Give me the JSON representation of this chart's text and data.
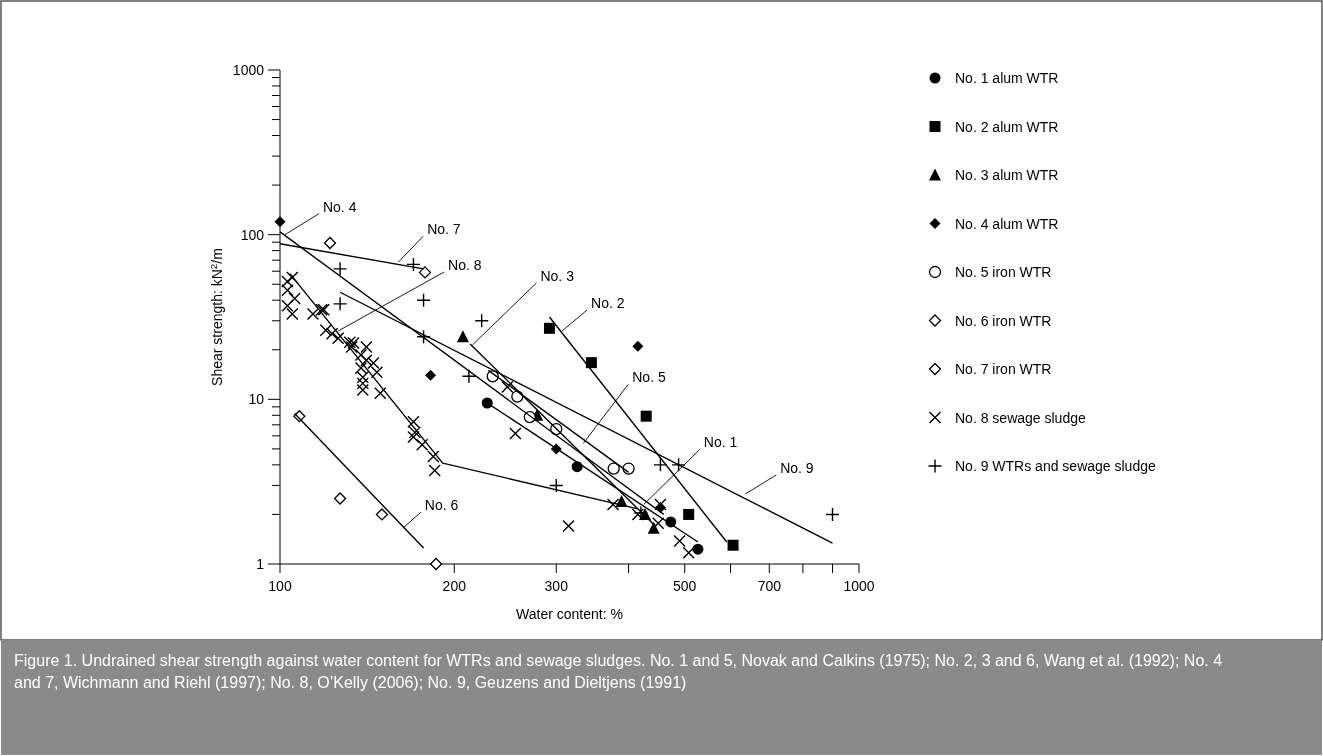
{
  "chart_data": {
    "type": "scatter",
    "xlabel": "Water content: %",
    "ylabel": "Shear strength: kN$^{2}$/m",
    "log": "xy",
    "legend": "right",
    "xlim": [
      100,
      1000
    ],
    "ylim": [
      1,
      1000
    ],
    "xticks": [
      100,
      200,
      300,
      {
        "value": 400,
        "label": null
      },
      500,
      {
        "value": 600,
        "label": null
      },
      700,
      {
        "value": 800,
        "label": null
      },
      {
        "value": 900,
        "label": null
      },
      1000
    ],
    "yticks": [
      1,
      {
        "value": 2,
        "label": null
      },
      {
        "value": 3,
        "label": null
      },
      {
        "value": 4,
        "label": null
      },
      {
        "value": 5,
        "label": null
      },
      {
        "value": 6,
        "label": null
      },
      {
        "value": 7,
        "label": null
      },
      {
        "value": 8,
        "label": null
      },
      {
        "value": 9,
        "label": null
      },
      10,
      {
        "value": 20,
        "label": null
      },
      {
        "value": 30,
        "label": null
      },
      {
        "value": 40,
        "label": null
      },
      {
        "value": 50,
        "label": null
      },
      {
        "value": 60,
        "label": null
      },
      {
        "value": 70,
        "label": null
      },
      {
        "value": 80,
        "label": null
      },
      {
        "value": 90,
        "label": null
      },
      100,
      {
        "value": 200,
        "label": null
      },
      {
        "value": 300,
        "label": null
      },
      {
        "value": 400,
        "label": null
      },
      {
        "value": 500,
        "label": null
      },
      {
        "value": 600,
        "label": null
      },
      {
        "value": 700,
        "label": null
      },
      {
        "value": 800,
        "label": null
      },
      {
        "value": 900,
        "label": null
      },
      1000
    ],
    "series": [
      {
        "name": "No. 1 alum WTR",
        "marker": "circle",
        "color": "#000000",
        "x": [
          228,
          326,
          473,
          527
        ],
        "values": [
          9.5,
          3.9,
          1.8,
          1.23
        ]
      },
      {
        "name": "No. 2 alum WTR",
        "marker": "square",
        "color": "#000000",
        "x": [
          292,
          345,
          429,
          508,
          606
        ],
        "values": [
          27,
          16.7,
          7.9,
          2.0,
          1.3
        ]
      },
      {
        "name": "No. 3 alum WTR",
        "marker": "triangle",
        "color": "#000000",
        "x": [
          207,
          278,
          389,
          427,
          442
        ],
        "values": [
          24,
          8.0,
          2.4,
          2.0,
          1.65
        ]
      },
      {
        "name": "No. 4 alum WTR",
        "marker": "diamond",
        "color": "#000000",
        "x": [
          100,
          182,
          300,
          415,
          454
        ],
        "values": [
          120,
          14,
          5.0,
          21,
          2.2
        ]
      },
      {
        "name": "No. 5 iron WTR",
        "marker": "circle-open",
        "color": "#000000",
        "x": [
          233,
          257,
          270,
          300,
          377,
          400
        ],
        "values": [
          13.8,
          10.4,
          7.8,
          6.6,
          3.8,
          3.8
        ]
      },
      {
        "name": "No. 6 iron WTR",
        "marker": "diamond-open",
        "color": "#000000",
        "x": [
          108,
          127,
          150,
          186
        ],
        "values": [
          7.9,
          2.5,
          2.0,
          1.0
        ]
      },
      {
        "name": "No. 7 iron WTR",
        "marker": "diamond-open",
        "color": "#000000",
        "x": [
          122,
          178
        ],
        "values": [
          89,
          59
        ]
      },
      {
        "name": "No. 8 sewage sludge",
        "marker": "x",
        "color": "#000000",
        "x": [
          105,
          103,
          103,
          106,
          103,
          105,
          114,
          118,
          119,
          120,
          123,
          126,
          132,
          134,
          133,
          141,
          138,
          141,
          145,
          138,
          147,
          139,
          139,
          139,
          149,
          170,
          171,
          170,
          176,
          184,
          185,
          247,
          255,
          315,
          376,
          415,
          450,
          454,
          490,
          508
        ],
        "values": [
          55,
          52,
          46,
          41,
          37,
          33,
          33,
          35,
          35,
          26.3,
          25,
          23.5,
          22.2,
          22,
          20.8,
          20.8,
          18.6,
          17.3,
          16.6,
          15.5,
          14.6,
          13.6,
          12.5,
          11.4,
          10.9,
          7.3,
          6.3,
          5.9,
          5.3,
          4.5,
          3.7,
          11.9,
          6.2,
          1.7,
          2.3,
          2.0,
          1.77,
          2.3,
          1.38,
          1.17
        ]
      },
      {
        "name": "No. 9 WTRs and sewage sludge",
        "marker": "plus",
        "color": "#000000",
        "x": [
          127,
          170,
          127,
          177,
          223,
          177,
          212,
          300,
          454,
          488,
          420,
          900
        ],
        "values": [
          62,
          66,
          38,
          40,
          30,
          24,
          13.8,
          3.0,
          4.0,
          4.0,
          2.04,
          2.0
        ]
      },
      {
        "type": "line",
        "color": "#000000",
        "x": [
          224,
          527
        ],
        "values": [
          9.9,
          1.36
        ]
      },
      {
        "type": "line",
        "color": "#000000",
        "x": [
          292,
          591
        ],
        "values": [
          31.6,
          1.36
        ]
      },
      {
        "type": "line",
        "color": "#000000",
        "x": [
          213,
          445
        ],
        "values": [
          21.7,
          1.7
        ]
      },
      {
        "type": "line",
        "color": "#000000",
        "x": [
          100,
          460
        ],
        "values": [
          104,
          2.0
        ]
      },
      {
        "type": "line",
        "color": "#000000",
        "x": [
          229,
          400
        ],
        "values": [
          15,
          3.6
        ]
      },
      {
        "type": "line",
        "color": "#000000",
        "x": [
          106,
          177
        ],
        "values": [
          8.2,
          1.25
        ]
      },
      {
        "type": "line",
        "color": "#000000",
        "x": [
          100,
          177
        ],
        "values": [
          88,
          62
        ]
      },
      {
        "type": "line",
        "color": "#000000",
        "x": [
          104,
          191,
          415
        ],
        "values": [
          58,
          4.1,
          2.16
        ]
      },
      {
        "type": "line",
        "color": "#000000",
        "x": [
          127,
          900
        ],
        "values": [
          44.7,
          1.34
        ]
      }
    ],
    "annotations": [
      {
        "text": "No. 4",
        "x": 102,
        "y": 100
      },
      {
        "text": "No. 7",
        "x": 160,
        "y": 68
      },
      {
        "text": "No. 8",
        "x": 126,
        "y": 26
      },
      {
        "text": "No. 3",
        "x": 215,
        "y": 21.4
      },
      {
        "text": "No. 2",
        "x": 307,
        "y": 26
      },
      {
        "text": "No. 5",
        "x": 334,
        "y": 5.4
      },
      {
        "text": "No. 1",
        "x": 425,
        "y": 2.3
      },
      {
        "text": "No. 9",
        "x": 636,
        "y": 2.66
      },
      {
        "text": "No. 6",
        "x": 163,
        "y": 1.65
      },
      "Figure 1. Undrained shear strength against water content for WTRs and sewage sludges. No. 1 and 5, Novak and Calkins (1975); No. 2, 3 and 6, Wang et al. (1992); No. 4 and 7, Wichmann and Riehl (1997); No. 8, O’Kelly (2006); No. 9, Geuzens and Dieltjens (1991)"
    ]
  }
}
